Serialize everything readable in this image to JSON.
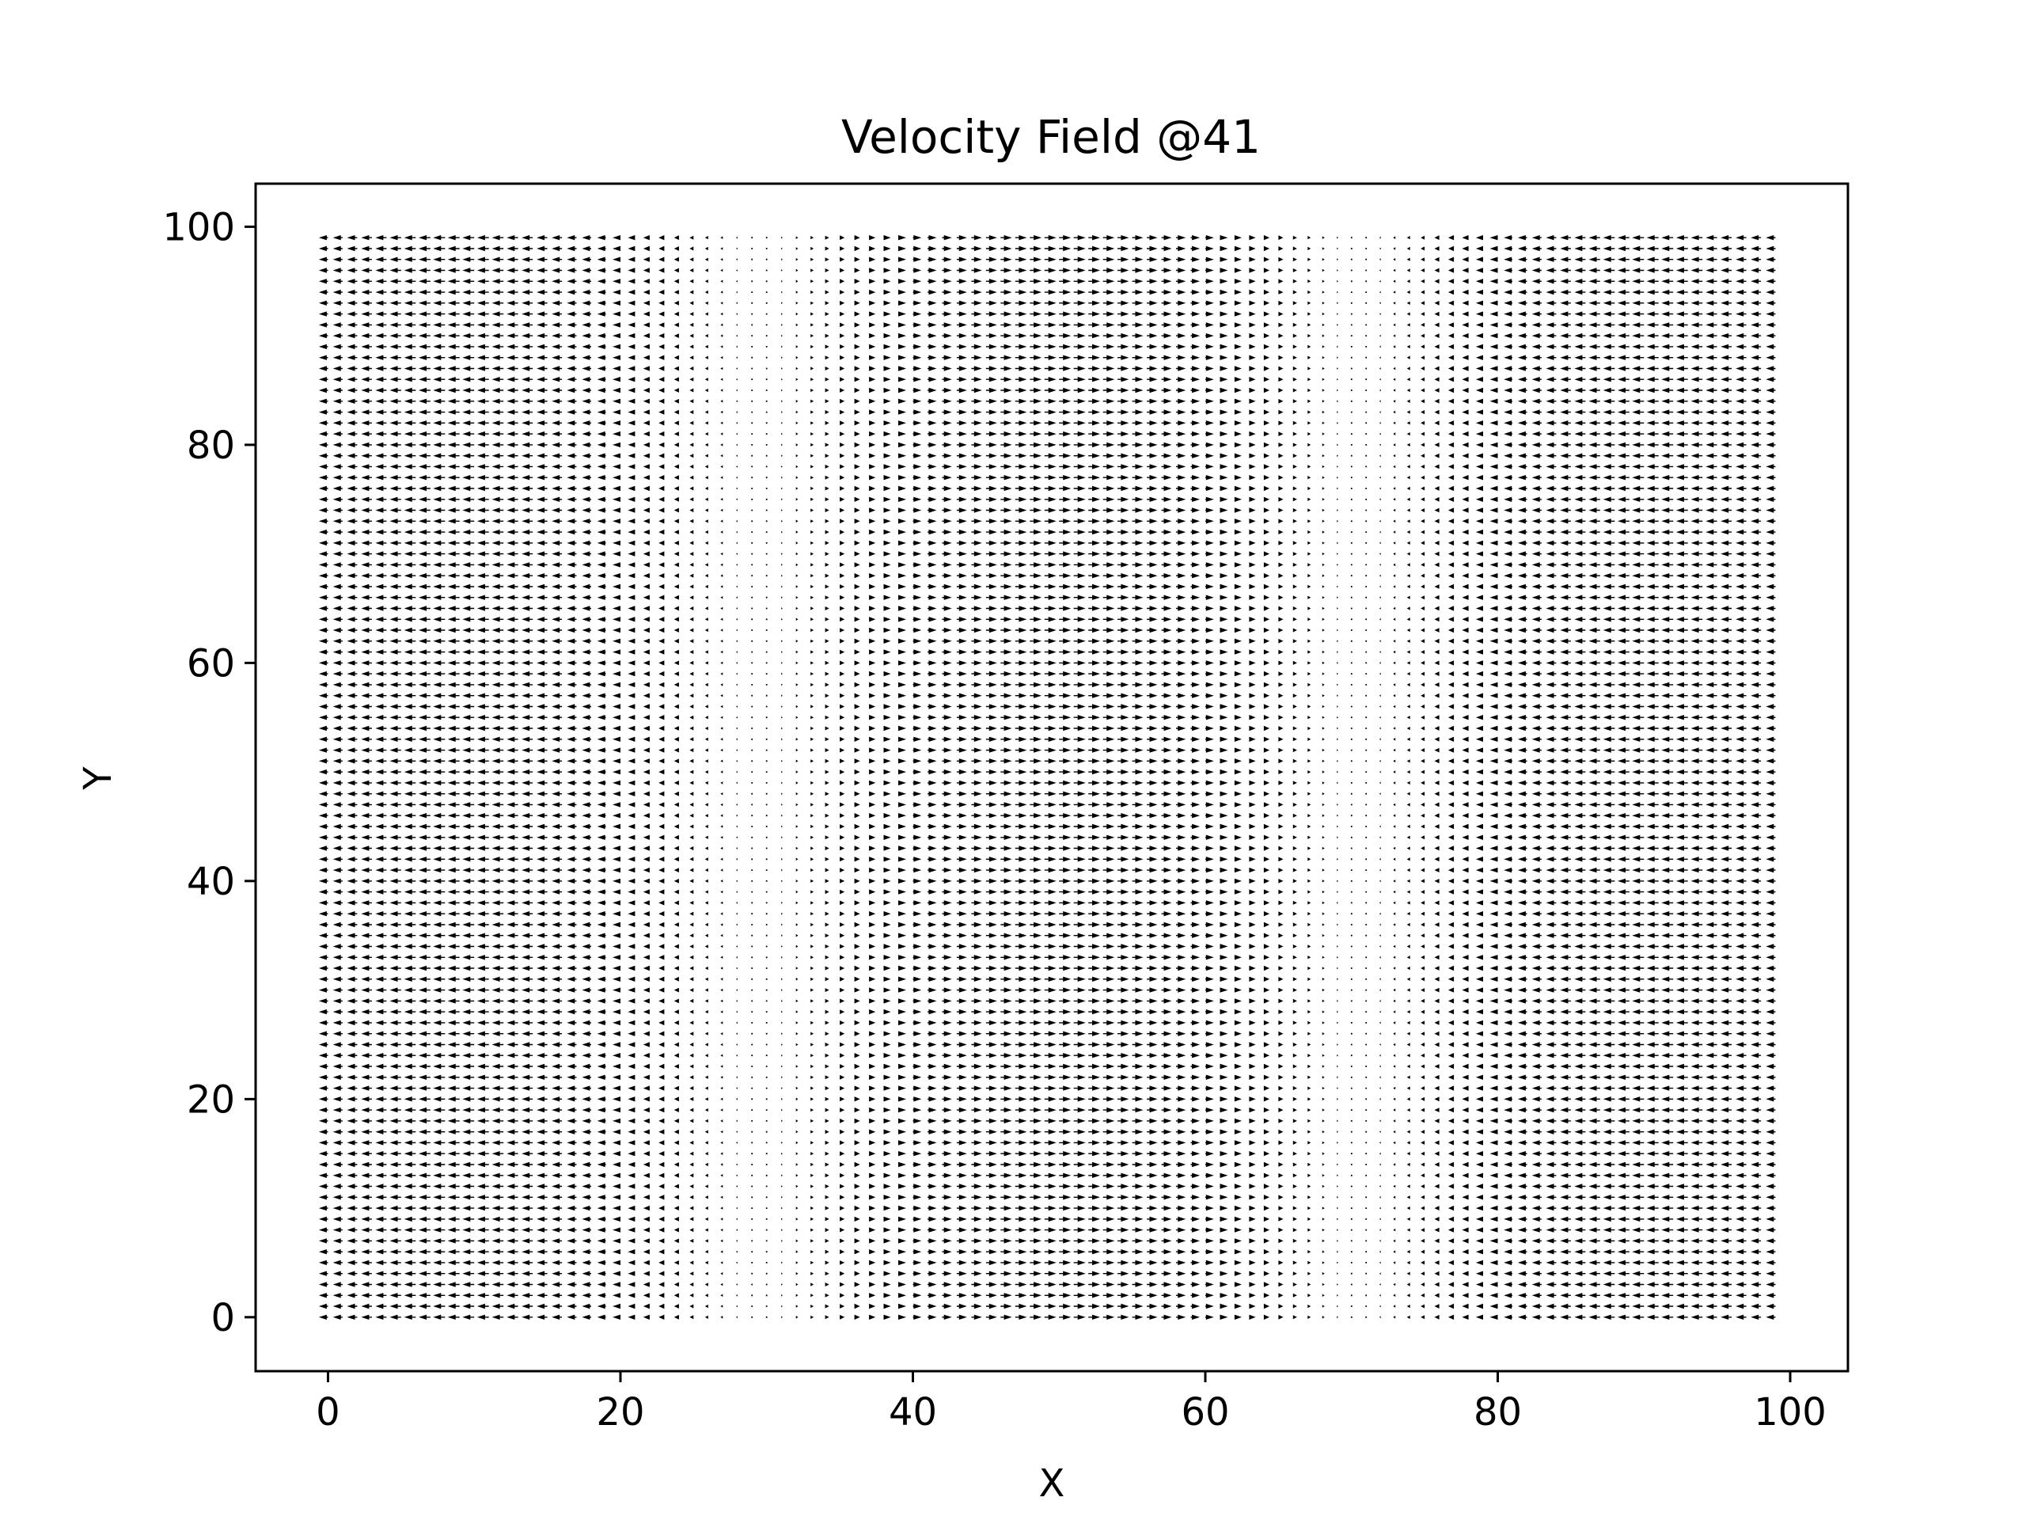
{
  "chart_data": {
    "type": "quiver",
    "title": "Velocity Field @41",
    "xlabel": "X",
    "ylabel": "Y",
    "xlim": [
      -4.95,
      103.95
    ],
    "ylim": [
      -4.95,
      103.95
    ],
    "grid": false,
    "legend": "none",
    "x_ticks": [
      0,
      20,
      40,
      60,
      80,
      100
    ],
    "y_ticks": [
      0,
      20,
      40,
      60,
      80,
      100
    ],
    "field": {
      "x_range": [
        0,
        99
      ],
      "y_range": [
        0,
        99
      ],
      "step": 1,
      "u_formula": "u(x) = -cos(2*pi*(x - 9)/82)",
      "v": 0,
      "description_of_pattern": "leftward at x=0-10 and x=85-99, near zero around x=20-30 and x=70-80, rightward strongest near x=48-52"
    },
    "arrow_color": "#000000"
  }
}
